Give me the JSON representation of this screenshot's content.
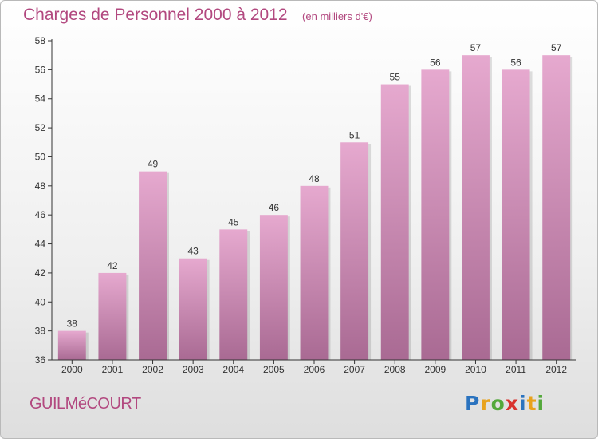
{
  "header": {
    "title": "Charges de Personnel 2000 à 2012",
    "subtitle": "(en milliers d'€)"
  },
  "footer": {
    "commune": "GUILMéCOURT",
    "logo_text": "Proxiti",
    "logo_colors": [
      "#2a73bf",
      "#e8a21c",
      "#54a83b",
      "#d9322e",
      "#2a73bf",
      "#e8a21c",
      "#54a83b"
    ]
  },
  "chart_data": {
    "type": "bar",
    "title": "Charges de Personnel 2000 à 2012",
    "subtitle": "(en milliers d'€)",
    "categories": [
      "2000",
      "2001",
      "2002",
      "2003",
      "2004",
      "2005",
      "2006",
      "2007",
      "2008",
      "2009",
      "2010",
      "2011",
      "2012"
    ],
    "values": [
      38,
      42,
      49,
      43,
      45,
      46,
      48,
      51,
      55,
      56,
      57,
      56,
      57
    ],
    "ylim": [
      36,
      58
    ],
    "yticks": [
      36,
      38,
      40,
      42,
      44,
      46,
      48,
      50,
      52,
      54,
      56,
      58
    ],
    "xlabel": "",
    "ylabel": "",
    "grid": false,
    "legend": "none",
    "colors": {
      "bar_top": "#e6a9cf",
      "bar_bottom": "#a96a93",
      "axis": "#333333",
      "label": "#333333"
    }
  }
}
